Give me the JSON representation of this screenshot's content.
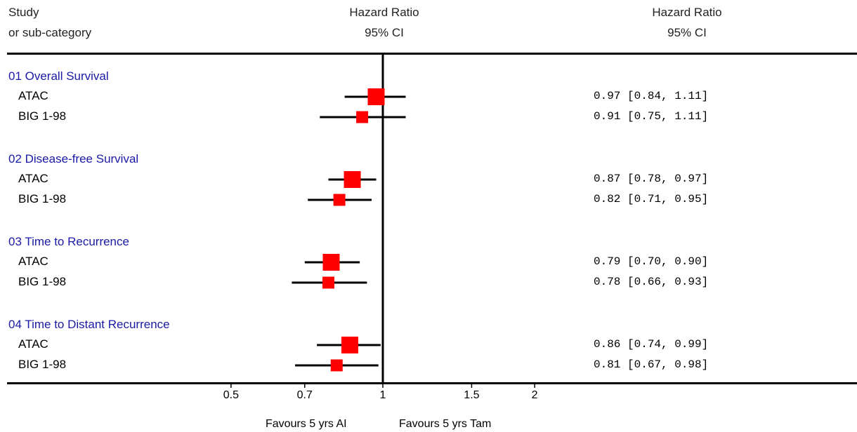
{
  "header": {
    "col1_line1": "Study",
    "col1_line2": "or sub-category",
    "col2_line1": "Hazard Ratio",
    "col2_line2": "95% CI",
    "col3_line1": "Hazard Ratio",
    "col3_line2": "95% CI"
  },
  "footer": {
    "favours_left": "Favours 5 yrs AI",
    "favours_right": "Favours 5 yrs Tam"
  },
  "colors": {
    "marker": "#ff0000",
    "group_title": "#1a1aa6",
    "line": "#000000"
  },
  "chart_data": {
    "type": "forest",
    "x_scale": "log",
    "reference_line": 1,
    "x_ticks": [
      0.5,
      0.7,
      1,
      1.5,
      2
    ],
    "x_tick_labels": [
      "0.5",
      "0.7",
      "1",
      "1.5",
      "2"
    ],
    "groups": [
      {
        "title": "01 Overall Survival",
        "studies": [
          {
            "name": "ATAC",
            "hr": 0.97,
            "lo": 0.84,
            "hi": 1.11,
            "label": "0.97 [0.84, 1.11]",
            "weight": "large"
          },
          {
            "name": "BIG 1-98",
            "hr": 0.91,
            "lo": 0.75,
            "hi": 1.11,
            "label": "0.91 [0.75, 1.11]",
            "weight": "small"
          }
        ]
      },
      {
        "title": "02 Disease-free Survival",
        "studies": [
          {
            "name": "ATAC",
            "hr": 0.87,
            "lo": 0.78,
            "hi": 0.97,
            "label": "0.87 [0.78, 0.97]",
            "weight": "large"
          },
          {
            "name": "BIG 1-98",
            "hr": 0.82,
            "lo": 0.71,
            "hi": 0.95,
            "label": "0.82 [0.71, 0.95]",
            "weight": "small"
          }
        ]
      },
      {
        "title": "03 Time to Recurrence",
        "studies": [
          {
            "name": "ATAC",
            "hr": 0.79,
            "lo": 0.7,
            "hi": 0.9,
            "label": "0.79 [0.70, 0.90]",
            "weight": "large"
          },
          {
            "name": "BIG 1-98",
            "hr": 0.78,
            "lo": 0.66,
            "hi": 0.93,
            "label": "0.78 [0.66, 0.93]",
            "weight": "small"
          }
        ]
      },
      {
        "title": "04 Time to Distant Recurrence",
        "studies": [
          {
            "name": "ATAC",
            "hr": 0.86,
            "lo": 0.74,
            "hi": 0.99,
            "label": "0.86 [0.74, 0.99]",
            "weight": "large"
          },
          {
            "name": "BIG 1-98",
            "hr": 0.81,
            "lo": 0.67,
            "hi": 0.98,
            "label": "0.81 [0.67, 0.98]",
            "weight": "small"
          }
        ]
      }
    ]
  }
}
